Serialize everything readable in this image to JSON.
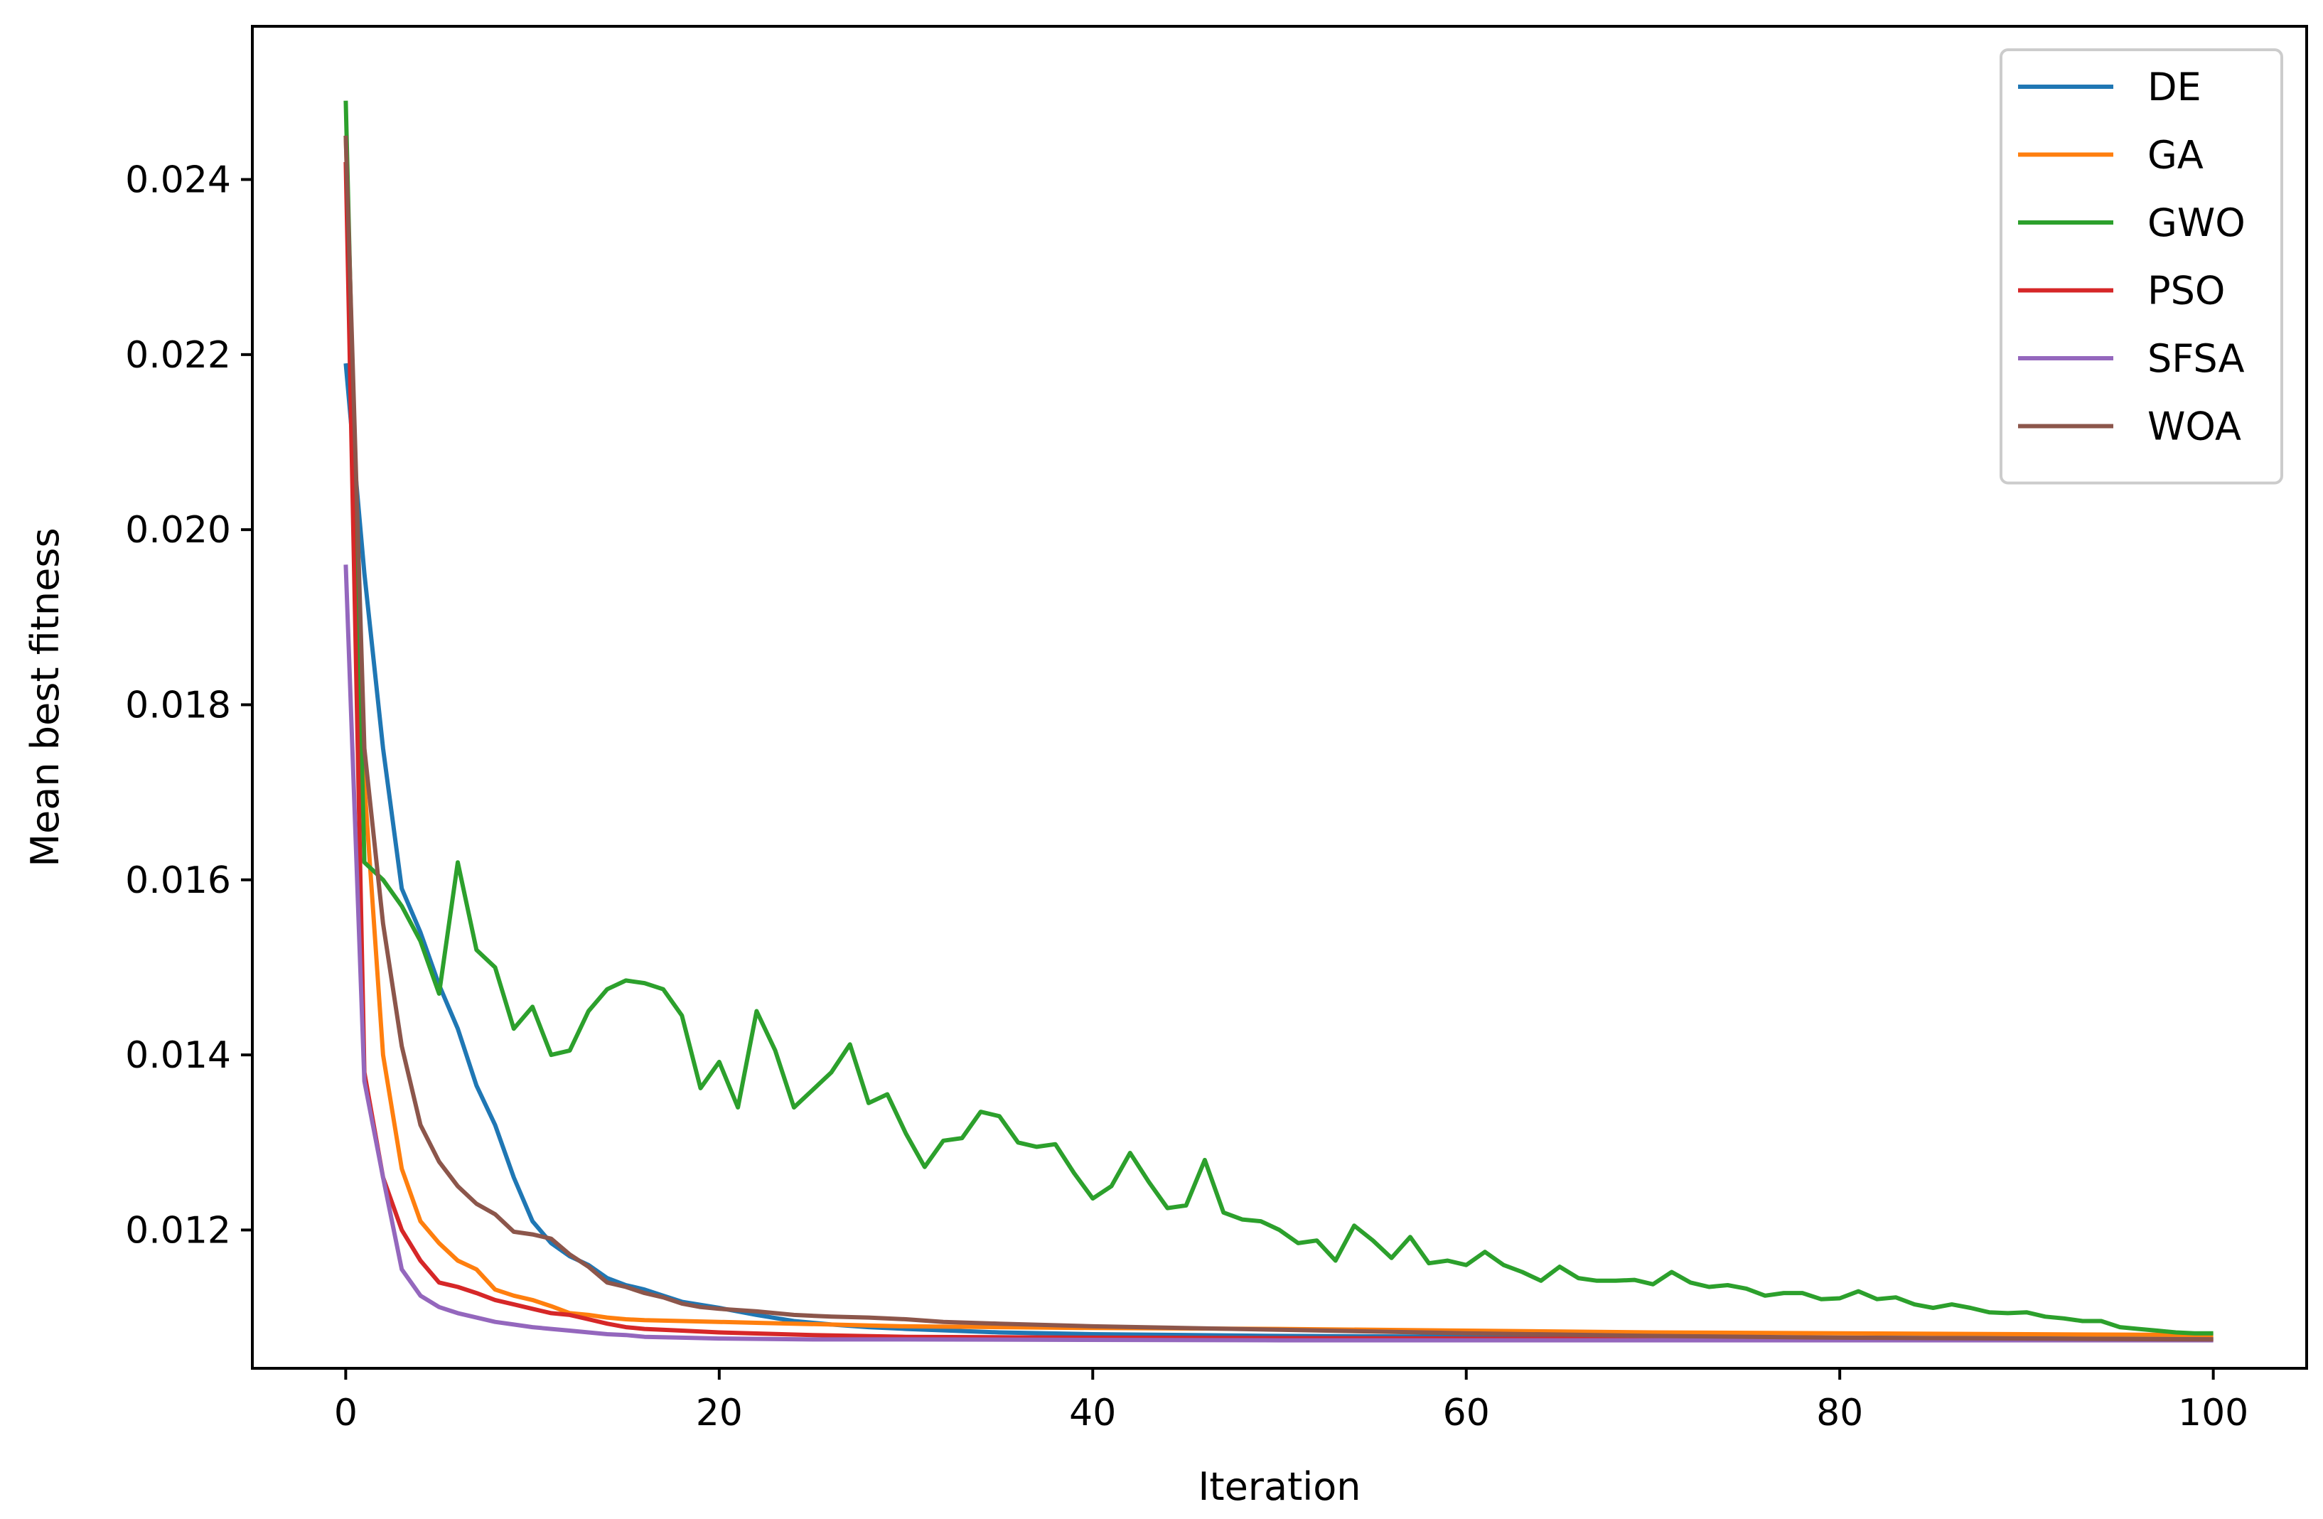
{
  "chart_data": {
    "type": "line",
    "title": "",
    "xlabel": "Iteration",
    "ylabel": "Mean best fitness",
    "xlim": [
      -5,
      105
    ],
    "ylim": [
      0.01042,
      0.02575
    ],
    "xticks": [
      0,
      20,
      40,
      60,
      80,
      100
    ],
    "yticks": [
      0.012,
      0.014,
      0.016,
      0.018,
      0.02,
      0.022,
      0.024
    ],
    "xtick_labels": [
      "0",
      "20",
      "40",
      "60",
      "80",
      "100"
    ],
    "ytick_labels": [
      "0.012",
      "0.014",
      "0.016",
      "0.018",
      "0.020",
      "0.022",
      "0.024"
    ],
    "grid": false,
    "legend_position": "top-right",
    "series": [
      {
        "name": "DE",
        "color": "#1f77b4",
        "points": [
          [
            0,
            0.0219
          ],
          [
            1,
            0.0195
          ],
          [
            2,
            0.0175
          ],
          [
            3,
            0.0159
          ],
          [
            4,
            0.0154
          ],
          [
            5,
            0.0148
          ],
          [
            6,
            0.0143
          ],
          [
            7,
            0.01365
          ],
          [
            8,
            0.0132
          ],
          [
            9,
            0.0126
          ],
          [
            10,
            0.0121
          ],
          [
            11,
            0.01185
          ],
          [
            12,
            0.0117
          ],
          [
            13,
            0.0116
          ],
          [
            14,
            0.01145
          ],
          [
            15,
            0.01137
          ],
          [
            16,
            0.01132
          ],
          [
            17,
            0.01125
          ],
          [
            18,
            0.01118
          ],
          [
            20,
            0.01111
          ],
          [
            22,
            0.01103
          ],
          [
            24,
            0.01096
          ],
          [
            26,
            0.01092
          ],
          [
            28,
            0.01089
          ],
          [
            30,
            0.01087
          ],
          [
            35,
            0.01083
          ],
          [
            40,
            0.01081
          ],
          [
            50,
            0.01079
          ],
          [
            60,
            0.01078
          ],
          [
            80,
            0.01077
          ],
          [
            100,
            0.01076
          ]
        ]
      },
      {
        "name": "GA",
        "color": "#ff7f0e",
        "points": [
          [
            0,
            0.0245
          ],
          [
            1,
            0.0171
          ],
          [
            2,
            0.014
          ],
          [
            3,
            0.0127
          ],
          [
            4,
            0.0121
          ],
          [
            5,
            0.01185
          ],
          [
            6,
            0.01165
          ],
          [
            7,
            0.01155
          ],
          [
            8,
            0.01132
          ],
          [
            9,
            0.01125
          ],
          [
            10,
            0.0112
          ],
          [
            11,
            0.01113
          ],
          [
            12,
            0.01105
          ],
          [
            13,
            0.01103
          ],
          [
            14,
            0.011
          ],
          [
            15,
            0.01098
          ],
          [
            16,
            0.01097
          ],
          [
            18,
            0.01096
          ],
          [
            20,
            0.01095
          ],
          [
            22,
            0.01094
          ],
          [
            24,
            0.01093
          ],
          [
            26,
            0.01092
          ],
          [
            28,
            0.01091
          ],
          [
            30,
            0.0109
          ],
          [
            35,
            0.01089
          ],
          [
            40,
            0.01088
          ],
          [
            50,
            0.01087
          ],
          [
            60,
            0.01085
          ],
          [
            70,
            0.01083
          ],
          [
            80,
            0.01082
          ],
          [
            90,
            0.01081
          ],
          [
            100,
            0.0108
          ]
        ]
      },
      {
        "name": "GWO",
        "color": "#2ca02c",
        "points": [
          [
            0,
            0.0249
          ],
          [
            1,
            0.0162
          ],
          [
            2,
            0.016
          ],
          [
            3,
            0.0157
          ],
          [
            4,
            0.0153
          ],
          [
            5,
            0.0147
          ],
          [
            6,
            0.0162
          ],
          [
            7,
            0.0152
          ],
          [
            8,
            0.015
          ],
          [
            9,
            0.0143
          ],
          [
            10,
            0.01455
          ],
          [
            11,
            0.014
          ],
          [
            12,
            0.01405
          ],
          [
            13,
            0.0145
          ],
          [
            14,
            0.01475
          ],
          [
            15,
            0.01485
          ],
          [
            16,
            0.01482
          ],
          [
            17,
            0.01475
          ],
          [
            18,
            0.01445
          ],
          [
            19,
            0.01362
          ],
          [
            20,
            0.01392
          ],
          [
            21,
            0.0134
          ],
          [
            22,
            0.0145
          ],
          [
            23,
            0.01405
          ],
          [
            24,
            0.0134
          ],
          [
            25,
            0.0136
          ],
          [
            26,
            0.0138
          ],
          [
            27,
            0.01412
          ],
          [
            28,
            0.01345
          ],
          [
            29,
            0.01355
          ],
          [
            30,
            0.0131
          ],
          [
            31,
            0.01272
          ],
          [
            32,
            0.01302
          ],
          [
            33,
            0.01305
          ],
          [
            34,
            0.01335
          ],
          [
            35,
            0.0133
          ],
          [
            36,
            0.013
          ],
          [
            37,
            0.01295
          ],
          [
            38,
            0.01298
          ],
          [
            39,
            0.01265
          ],
          [
            40,
            0.01236
          ],
          [
            41,
            0.0125
          ],
          [
            42,
            0.01288
          ],
          [
            43,
            0.01255
          ],
          [
            44,
            0.01225
          ],
          [
            45,
            0.01228
          ],
          [
            46,
            0.0128
          ],
          [
            47,
            0.0122
          ],
          [
            48,
            0.01212
          ],
          [
            49,
            0.0121
          ],
          [
            50,
            0.012
          ],
          [
            51,
            0.01185
          ],
          [
            52,
            0.01188
          ],
          [
            53,
            0.01165
          ],
          [
            54,
            0.01205
          ],
          [
            55,
            0.01188
          ],
          [
            56,
            0.01168
          ],
          [
            57,
            0.01192
          ],
          [
            58,
            0.01162
          ],
          [
            59,
            0.01165
          ],
          [
            60,
            0.0116
          ],
          [
            61,
            0.01175
          ],
          [
            62,
            0.0116
          ],
          [
            63,
            0.01152
          ],
          [
            64,
            0.01142
          ],
          [
            65,
            0.01158
          ],
          [
            66,
            0.01145
          ],
          [
            67,
            0.01142
          ],
          [
            68,
            0.01142
          ],
          [
            69,
            0.01143
          ],
          [
            70,
            0.01138
          ],
          [
            71,
            0.01152
          ],
          [
            72,
            0.0114
          ],
          [
            73,
            0.01135
          ],
          [
            74,
            0.01137
          ],
          [
            75,
            0.01133
          ],
          [
            76,
            0.01125
          ],
          [
            77,
            0.01128
          ],
          [
            78,
            0.01128
          ],
          [
            79,
            0.01121
          ],
          [
            80,
            0.01122
          ],
          [
            81,
            0.0113
          ],
          [
            82,
            0.01121
          ],
          [
            83,
            0.01123
          ],
          [
            84,
            0.01115
          ],
          [
            85,
            0.01111
          ],
          [
            86,
            0.01115
          ],
          [
            87,
            0.01111
          ],
          [
            88,
            0.01106
          ],
          [
            89,
            0.01105
          ],
          [
            90,
            0.01106
          ],
          [
            91,
            0.01101
          ],
          [
            92,
            0.01099
          ],
          [
            93,
            0.01096
          ],
          [
            94,
            0.01096
          ],
          [
            95,
            0.01089
          ],
          [
            96,
            0.01087
          ],
          [
            97,
            0.01085
          ],
          [
            98,
            0.01083
          ],
          [
            99,
            0.01082
          ],
          [
            100,
            0.01082
          ]
        ]
      },
      {
        "name": "PSO",
        "color": "#d62728",
        "points": [
          [
            0,
            0.0242
          ],
          [
            1,
            0.0138
          ],
          [
            2,
            0.0126
          ],
          [
            3,
            0.012
          ],
          [
            4,
            0.01165
          ],
          [
            5,
            0.0114
          ],
          [
            6,
            0.01135
          ],
          [
            7,
            0.01128
          ],
          [
            8,
            0.0112
          ],
          [
            9,
            0.01115
          ],
          [
            10,
            0.0111
          ],
          [
            11,
            0.01105
          ],
          [
            12,
            0.01103
          ],
          [
            13,
            0.01098
          ],
          [
            14,
            0.01093
          ],
          [
            15,
            0.01089
          ],
          [
            16,
            0.01087
          ],
          [
            18,
            0.01085
          ],
          [
            20,
            0.01083
          ],
          [
            25,
            0.0108
          ],
          [
            30,
            0.01078
          ],
          [
            40,
            0.01077
          ],
          [
            60,
            0.01076
          ],
          [
            80,
            0.01075
          ],
          [
            100,
            0.01075
          ]
        ]
      },
      {
        "name": "SFSA",
        "color": "#9467bd",
        "points": [
          [
            0,
            0.0196
          ],
          [
            1,
            0.0137
          ],
          [
            2,
            0.0126
          ],
          [
            3,
            0.01155
          ],
          [
            4,
            0.01125
          ],
          [
            5,
            0.01112
          ],
          [
            6,
            0.01105
          ],
          [
            7,
            0.011
          ],
          [
            8,
            0.01095
          ],
          [
            9,
            0.01092
          ],
          [
            10,
            0.01089
          ],
          [
            11,
            0.01087
          ],
          [
            12,
            0.01085
          ],
          [
            13,
            0.01083
          ],
          [
            14,
            0.01081
          ],
          [
            15,
            0.0108
          ],
          [
            16,
            0.01078
          ],
          [
            18,
            0.01077
          ],
          [
            20,
            0.01076
          ],
          [
            25,
            0.01075
          ],
          [
            30,
            0.01075
          ],
          [
            50,
            0.01074
          ],
          [
            100,
            0.01074
          ]
        ]
      },
      {
        "name": "WOA",
        "color": "#8c564b",
        "points": [
          [
            0,
            0.0245
          ],
          [
            1,
            0.0175
          ],
          [
            2,
            0.0155
          ],
          [
            3,
            0.0141
          ],
          [
            4,
            0.0132
          ],
          [
            5,
            0.01278
          ],
          [
            6,
            0.0125
          ],
          [
            7,
            0.0123
          ],
          [
            8,
            0.01218
          ],
          [
            9,
            0.01198
          ],
          [
            10,
            0.01195
          ],
          [
            11,
            0.0119
          ],
          [
            12,
            0.01172
          ],
          [
            13,
            0.01158
          ],
          [
            14,
            0.0114
          ],
          [
            15,
            0.01135
          ],
          [
            16,
            0.01128
          ],
          [
            17,
            0.01123
          ],
          [
            18,
            0.01116
          ],
          [
            19,
            0.01112
          ],
          [
            20,
            0.0111
          ],
          [
            22,
            0.01107
          ],
          [
            24,
            0.01103
          ],
          [
            26,
            0.01101
          ],
          [
            28,
            0.011
          ],
          [
            30,
            0.01098
          ],
          [
            32,
            0.01095
          ],
          [
            35,
            0.01093
          ],
          [
            40,
            0.0109
          ],
          [
            50,
            0.01086
          ],
          [
            60,
            0.01082
          ],
          [
            70,
            0.01079
          ],
          [
            80,
            0.01077
          ],
          [
            90,
            0.01076
          ],
          [
            100,
            0.01075
          ]
        ]
      }
    ]
  }
}
